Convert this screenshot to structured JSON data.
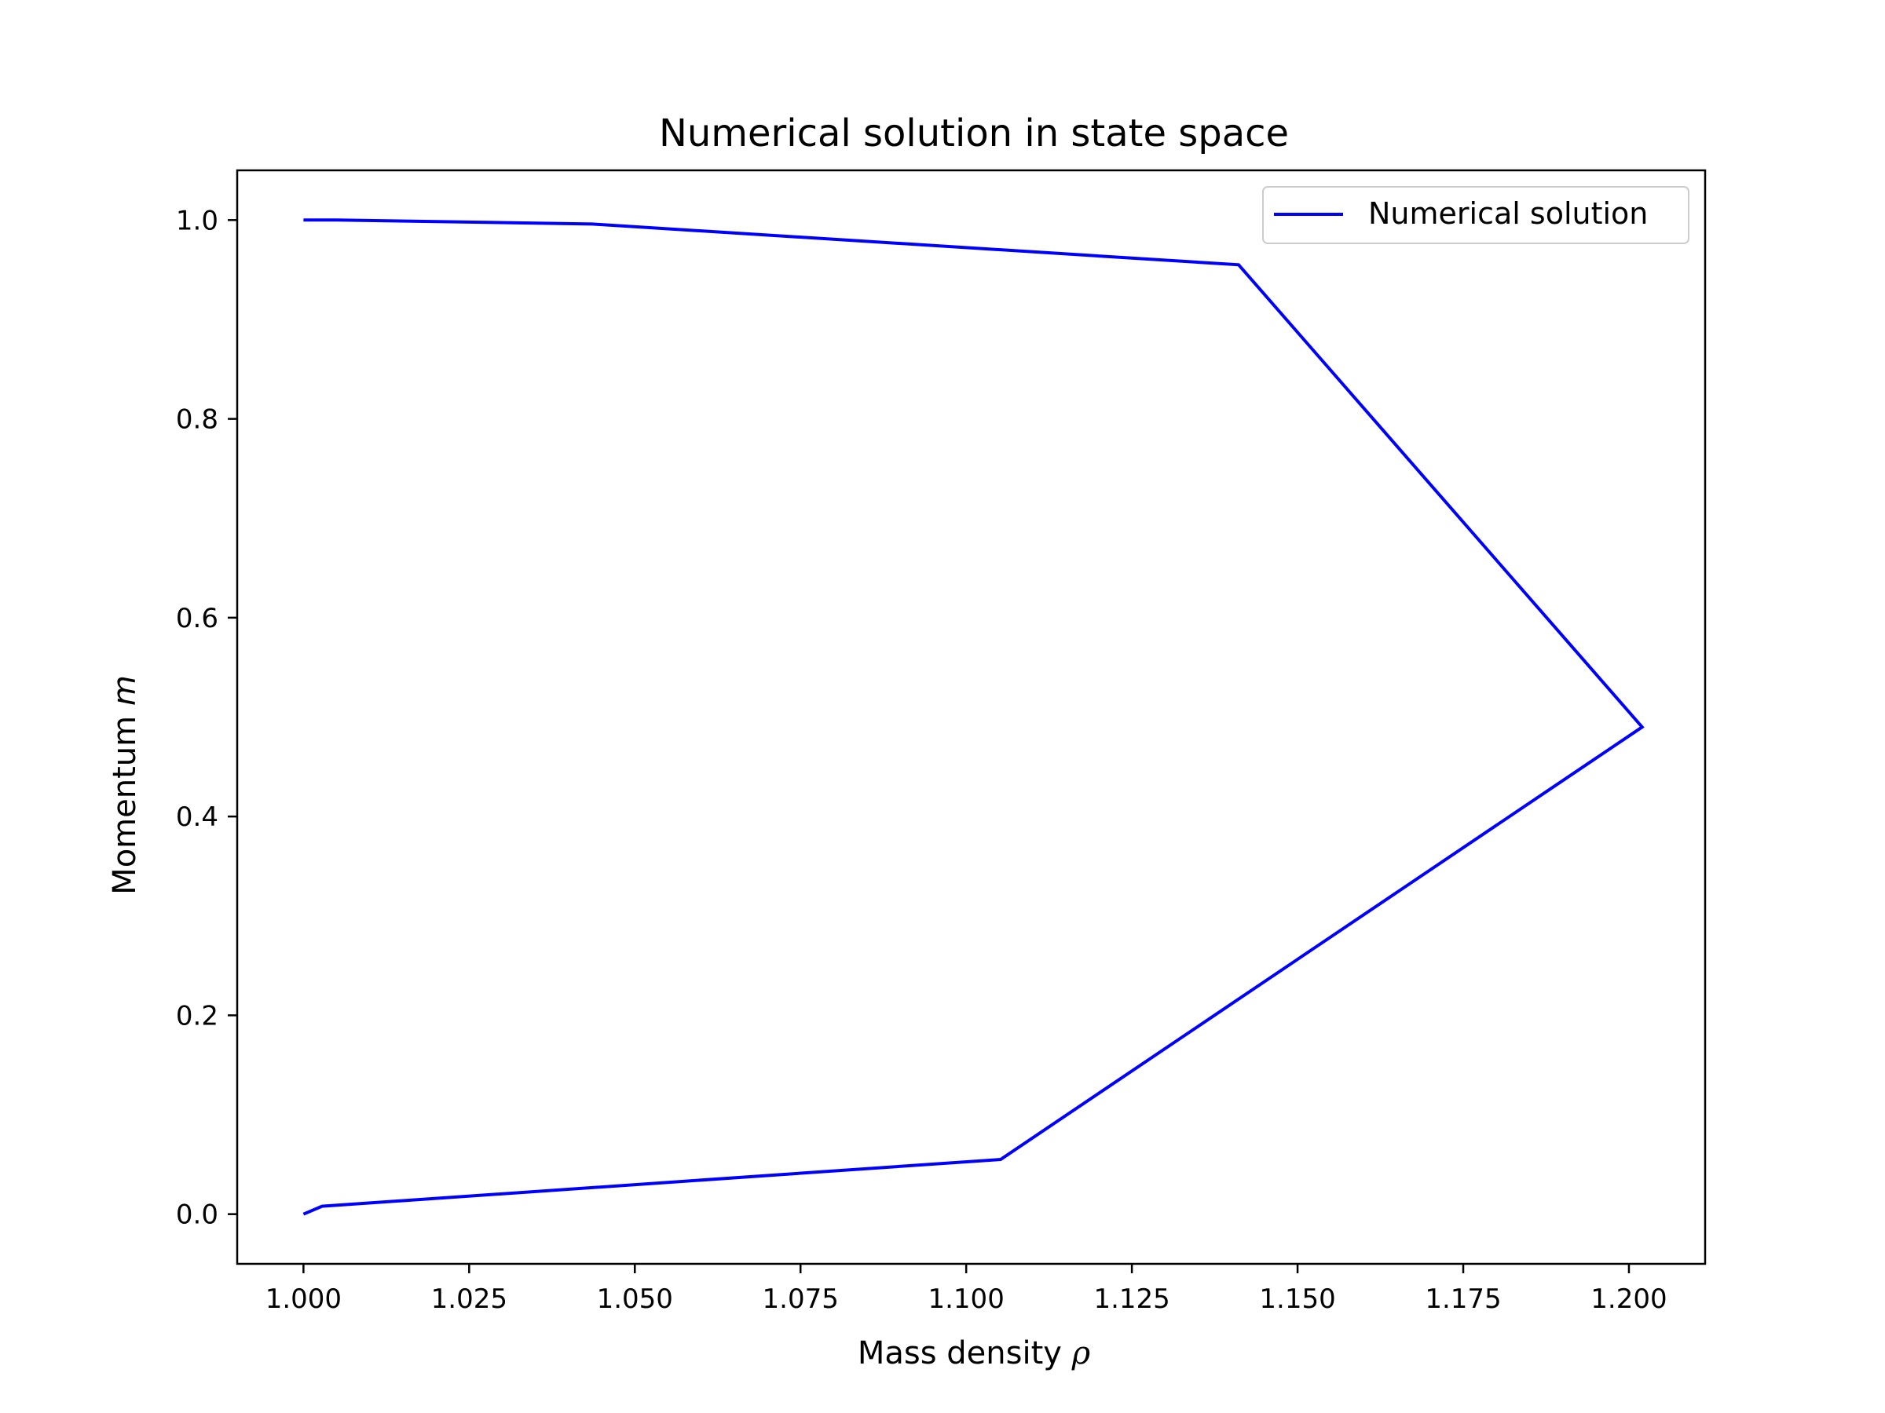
{
  "chart_data": {
    "type": "line",
    "title": "Numerical solution in state space",
    "xlabel_prefix": "Mass density",
    "xlabel_symbol": "ρ",
    "ylabel_prefix": "Momentum",
    "ylabel_symbol": "m",
    "xlim": [
      0.99,
      1.2115
    ],
    "ylim": [
      -0.05,
      1.05
    ],
    "xticks": [
      1.0,
      1.025,
      1.05,
      1.075,
      1.1,
      1.125,
      1.15,
      1.175,
      1.2
    ],
    "xtick_labels": [
      "1.000",
      "1.025",
      "1.050",
      "1.075",
      "1.100",
      "1.125",
      "1.150",
      "1.175",
      "1.200"
    ],
    "yticks": [
      0.0,
      0.2,
      0.4,
      0.6,
      0.8,
      1.0
    ],
    "ytick_labels": [
      "0.0",
      "0.2",
      "0.4",
      "0.6",
      "0.8",
      "1.0"
    ],
    "grid": false,
    "legend_position": "top-right",
    "series": [
      {
        "name": "Numerical solution",
        "color": "#0000ff",
        "x": [
          1.0,
          1.0028,
          1.1052,
          1.202,
          1.1411,
          1.0436,
          1.005,
          1.0
        ],
        "y": [
          0.0,
          0.008,
          0.055,
          0.49,
          0.955,
          0.996,
          1.0,
          1.0
        ]
      }
    ]
  }
}
